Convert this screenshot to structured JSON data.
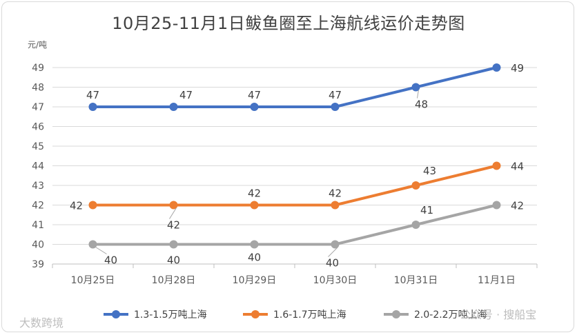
{
  "chart_data": {
    "type": "line",
    "title": "10月25-11月1日鲅鱼圈至上海航线运价走势图",
    "ylabel": "元/吨",
    "xlabel": "",
    "categories": [
      "10月25日",
      "10月28日",
      "10月29日",
      "10月30日",
      "10月31日",
      "11月1日"
    ],
    "ylim": [
      39,
      49
    ],
    "yticks": [
      39,
      40,
      41,
      42,
      43,
      44,
      45,
      46,
      47,
      48,
      49
    ],
    "grid": true,
    "legend_position": "bottom",
    "series": [
      {
        "name": "1.3-1.5万吨上海",
        "color": "#4472C4",
        "values": [
          47,
          47,
          47,
          47,
          48,
          49
        ]
      },
      {
        "name": "1.6-1.7万吨上海",
        "color": "#ED7D31",
        "values": [
          42,
          42,
          42,
          42,
          43,
          44
        ]
      },
      {
        "name": "2.0-2.2万吨上海",
        "color": "#A5A5A5",
        "values": [
          40,
          40,
          40,
          40,
          41,
          42
        ]
      }
    ]
  },
  "watermarks": {
    "bottom_left": "大数跨境",
    "bottom_right": "公众号 · 搜船宝"
  }
}
